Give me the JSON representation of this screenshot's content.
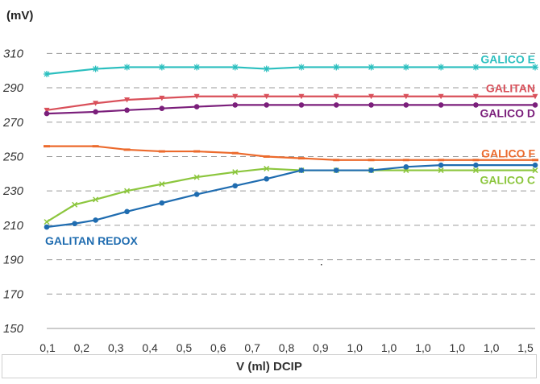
{
  "chart_data": {
    "type": "line",
    "ylabel": "(mV)",
    "xlabel": "V (ml) DCIP",
    "ylim": [
      150,
      320
    ],
    "yticks": [
      150,
      170,
      190,
      210,
      230,
      250,
      270,
      290,
      310
    ],
    "grid": true,
    "categories": [
      "0,1",
      "0,2",
      "0,3",
      "0,4",
      "0,5",
      "0,6",
      "0,7",
      "0,8",
      "0,9",
      "1,0",
      "1,0",
      "1,0",
      "1,0",
      "1,0",
      "1,5"
    ],
    "x": [
      0.1,
      0.18,
      0.24,
      0.33,
      0.43,
      0.53,
      0.64,
      0.73,
      0.83,
      0.93,
      1.03,
      1.13,
      1.23,
      1.33,
      1.4,
      1.5
    ],
    "series": [
      {
        "name": "GALICO E",
        "color": "#2bbfbf",
        "marker": "star",
        "values": [
          298,
          null,
          301,
          302,
          302,
          302,
          302,
          301,
          302,
          302,
          302,
          302,
          302,
          302,
          null,
          302
        ]
      },
      {
        "name": "GALITAN",
        "color": "#d9505a",
        "marker": "tri",
        "values": [
          277,
          null,
          281,
          283,
          284,
          285,
          285,
          285,
          285,
          285,
          285,
          285,
          285,
          285,
          null,
          285
        ]
      },
      {
        "name": "GALICO D",
        "color": "#7b1f7b",
        "marker": "dot",
        "values": [
          275,
          null,
          276,
          277,
          278,
          279,
          280,
          280,
          280,
          280,
          280,
          280,
          280,
          280,
          null,
          280
        ]
      },
      {
        "name": "GALICO F",
        "color": "#ec6a2c",
        "marker": "dash",
        "values": [
          256,
          null,
          256,
          254,
          253,
          253,
          252,
          250,
          249,
          248,
          248,
          248,
          248,
          248,
          null,
          248
        ]
      },
      {
        "name": "GALICO C",
        "color": "#8cc63e",
        "marker": "x",
        "values": [
          212,
          222,
          225,
          230,
          234,
          238,
          241,
          243,
          242,
          242,
          242,
          242,
          242,
          242,
          null,
          242
        ]
      },
      {
        "name": "GALITAN REDOX",
        "color": "#1f6cb0",
        "marker": "dot",
        "values": [
          209,
          211,
          213,
          218,
          223,
          228,
          233,
          237,
          242,
          242,
          242,
          244,
          245,
          245,
          null,
          245
        ]
      }
    ]
  }
}
